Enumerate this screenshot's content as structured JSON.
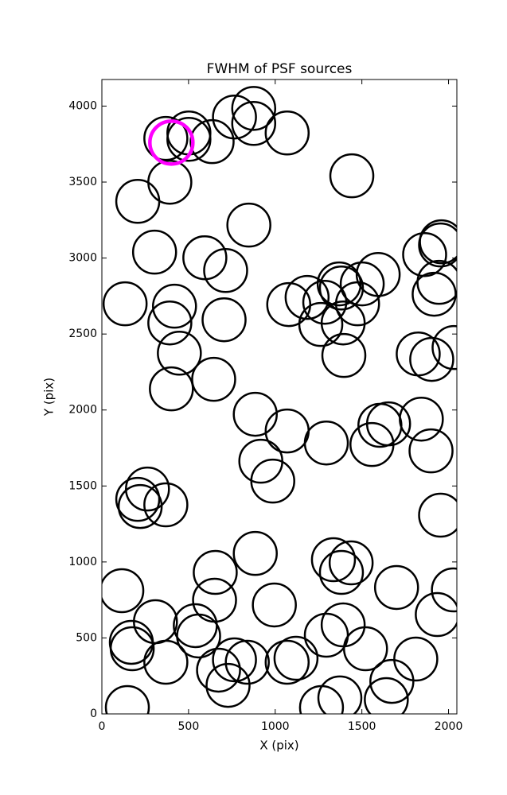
{
  "chart_data": {
    "type": "scatter",
    "title": "FWHM of PSF sources",
    "x_label": "X (pix)",
    "y_label": "Y (pix)",
    "xlim": [
      0,
      2048
    ],
    "ylim": [
      0,
      4175
    ],
    "xticks": [
      0,
      500,
      1000,
      1500,
      2000
    ],
    "yticks": [
      0,
      500,
      1000,
      1500,
      2000,
      2500,
      3000,
      3500,
      4000
    ],
    "series": [
      {
        "color": "#000000",
        "x": [
          369,
          502,
          502,
          636,
          765,
          876,
          876,
          1069,
          392,
          207,
          1442,
          848,
          304,
          594,
          714,
          134,
          419,
          392,
          705,
          447,
          401,
          645,
          1078,
          1184,
          1286,
          1263,
          1369,
          1382,
          1502,
          1594,
          1475,
          1392,
          1396,
          1862,
          1954,
          1959,
          1945,
          1917,
          1825,
          1903,
          2032,
          885,
          1069,
          1295,
          1558,
          1604,
          1654,
          1843,
          1899,
          917,
          986,
          263,
          207,
          221,
          369,
          1954,
          885,
          1336,
          1438,
          1382,
          115,
          654,
          650,
          995,
          1700,
          2028,
          309,
          539,
          558,
          170,
          175,
          369,
          673,
          765,
          839,
          728,
          1069,
          1120,
          1295,
          1392,
          1521,
          1811,
          1935,
          1673,
          1641,
          1373,
          1267,
          147
        ],
        "y": [
          3787,
          3823,
          3781,
          3766,
          3928,
          3985,
          3886,
          3823,
          3499,
          3373,
          3541,
          3217,
          3039,
          3002,
          2918,
          2699,
          2683,
          2573,
          2594,
          2374,
          2139,
          2202,
          2694,
          2741,
          2709,
          2563,
          2830,
          2803,
          2830,
          2892,
          2699,
          2573,
          2359,
          3023,
          3086,
          3107,
          2840,
          2762,
          2369,
          2333,
          2411,
          1972,
          1862,
          1783,
          1773,
          1899,
          1909,
          1940,
          1731,
          1663,
          1532,
          1480,
          1412,
          1365,
          1376,
          1308,
          1056,
          1015,
          994,
          931,
          811,
          931,
          748,
          717,
          832,
          816,
          607,
          581,
          513,
          471,
          429,
          340,
          288,
          356,
          340,
          188,
          340,
          366,
          518,
          586,
          429,
          361,
          654,
          214,
          94,
          105,
          42,
          42
        ]
      },
      {
        "color": "#ff00ff",
        "x": [
          401
        ],
        "y": [
          3760
        ]
      }
    ]
  }
}
